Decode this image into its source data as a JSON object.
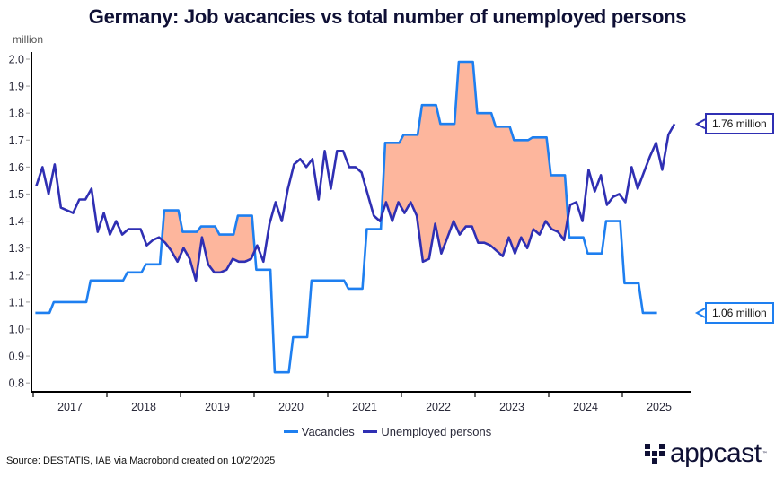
{
  "title": "Germany: Job vacancies vs total number of unemployed persons",
  "unit_label": "million",
  "source": "Source: DESTATIS, IAB via Macrobond created on 10/2/2025",
  "logo": {
    "text": "appcast",
    "tm": "™"
  },
  "colors": {
    "vacancies": "#1e7ff0",
    "unemployed": "#2f2fb3",
    "gap_fill": "#fdb69d",
    "title": "#0f1035"
  },
  "callouts": {
    "unemployed": "1.76 million",
    "vacancies": "1.06 million"
  },
  "chart_data": {
    "type": "line",
    "title": "Germany: Job vacancies vs total number of unemployed persons",
    "xlabel": "",
    "ylabel": "million",
    "ylim": [
      0.8,
      2.0
    ],
    "yticks": [
      "0.8",
      "0.9",
      "1.0",
      "1.1",
      "1.2",
      "1.3",
      "1.4",
      "1.5",
      "1.6",
      "1.7",
      "1.8",
      "1.9",
      "2.0"
    ],
    "xticks": [
      "2017",
      "2018",
      "2019",
      "2020",
      "2021",
      "2022",
      "2023",
      "2024",
      "2025"
    ],
    "xlim": [
      "2017-01",
      "2025-12"
    ],
    "grid": false,
    "legend_position": "bottom",
    "shading": "Area shaded where vacancies exceed unemployed persons",
    "series": [
      {
        "name": "Vacancies",
        "frequency": "quarterly",
        "start": "2017-Q1",
        "values": [
          1.06,
          1.1,
          1.1,
          1.18,
          1.18,
          1.21,
          1.24,
          1.44,
          1.36,
          1.38,
          1.35,
          1.42,
          1.22,
          0.84,
          0.97,
          1.18,
          1.18,
          1.15,
          1.37,
          1.69,
          1.72,
          1.83,
          1.76,
          1.99,
          1.8,
          1.75,
          1.7,
          1.71,
          1.57,
          1.34,
          1.28,
          1.4,
          1.17,
          1.06
        ]
      },
      {
        "name": "Unemployed persons",
        "frequency": "monthly",
        "start": "2017-01",
        "values": [
          1.53,
          1.6,
          1.5,
          1.61,
          1.45,
          1.44,
          1.43,
          1.48,
          1.48,
          1.52,
          1.36,
          1.43,
          1.35,
          1.4,
          1.35,
          1.37,
          1.37,
          1.37,
          1.31,
          1.33,
          1.34,
          1.32,
          1.29,
          1.25,
          1.3,
          1.26,
          1.18,
          1.34,
          1.24,
          1.21,
          1.21,
          1.22,
          1.26,
          1.25,
          1.25,
          1.26,
          1.31,
          1.25,
          1.39,
          1.47,
          1.4,
          1.52,
          1.61,
          1.63,
          1.6,
          1.63,
          1.48,
          1.66,
          1.52,
          1.66,
          1.66,
          1.6,
          1.6,
          1.58,
          1.5,
          1.42,
          1.4,
          1.47,
          1.4,
          1.47,
          1.43,
          1.47,
          1.42,
          1.25,
          1.26,
          1.39,
          1.28,
          1.34,
          1.4,
          1.35,
          1.38,
          1.38,
          1.32,
          1.32,
          1.31,
          1.29,
          1.27,
          1.34,
          1.28,
          1.34,
          1.3,
          1.37,
          1.35,
          1.4,
          1.37,
          1.36,
          1.33,
          1.46,
          1.47,
          1.4,
          1.59,
          1.51,
          1.57,
          1.46,
          1.49,
          1.5,
          1.47,
          1.6,
          1.52,
          1.58,
          1.64,
          1.69,
          1.59,
          1.72,
          1.76
        ]
      }
    ]
  }
}
